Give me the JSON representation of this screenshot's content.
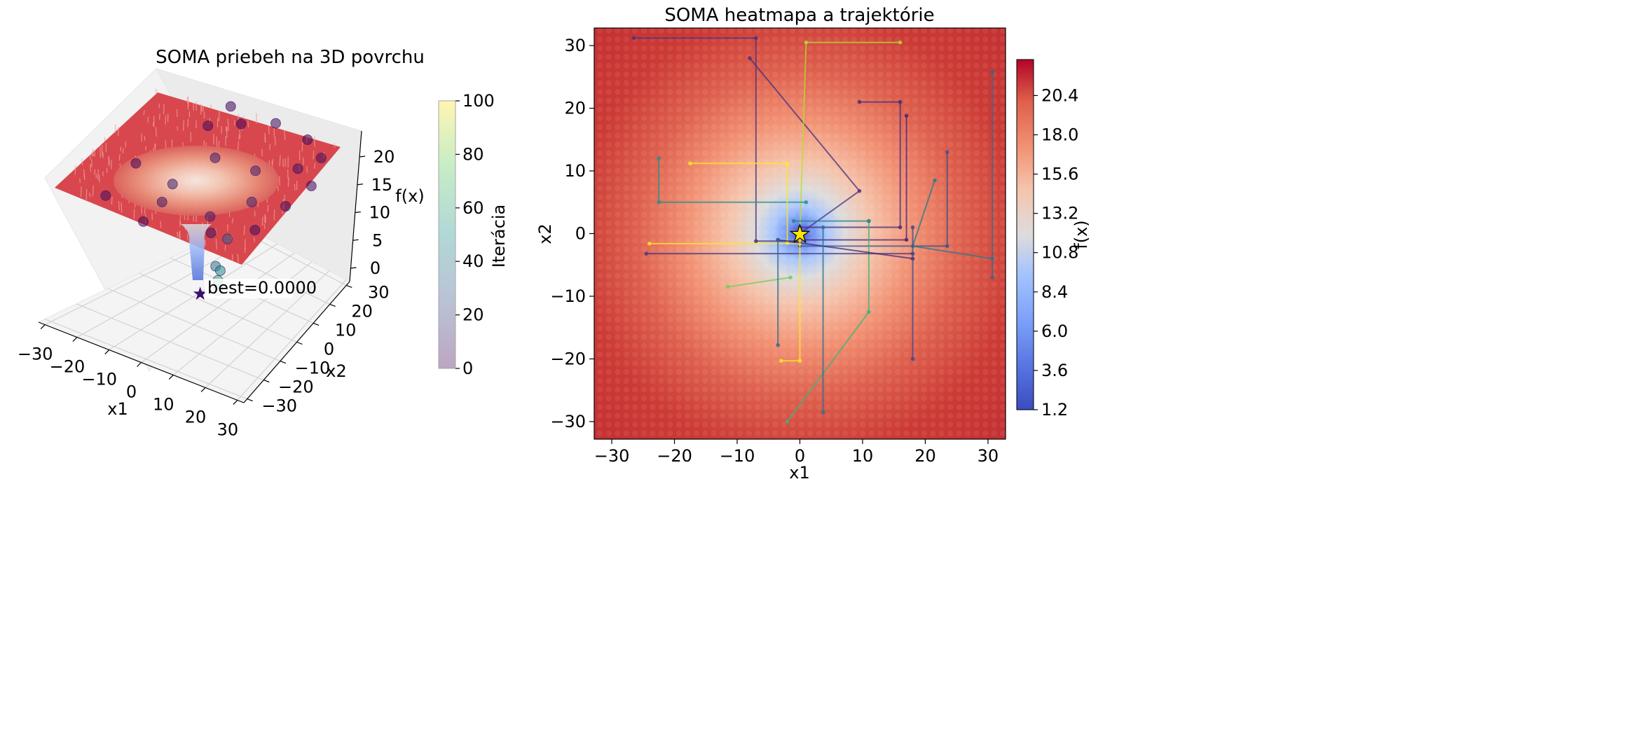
{
  "chart_data": [
    {
      "type": "surface3d",
      "title": "SOMA priebeh na 3D povrchu",
      "xlabel": "x1",
      "ylabel": "x2",
      "zlabel": "f(x)",
      "x_ticks": [
        "−30",
        "−20",
        "−10",
        "0",
        "10",
        "20",
        "30"
      ],
      "y_ticks": [
        "−30",
        "−20",
        "−10",
        "0",
        "10",
        "20",
        "30"
      ],
      "z_ticks": [
        "0",
        "5",
        "10",
        "15",
        "20"
      ],
      "xlim": [
        -32,
        32
      ],
      "ylim": [
        -32,
        32
      ],
      "zlim": [
        0,
        22
      ],
      "surface_colormap": "coolwarm",
      "annotation": "best=0.0000",
      "best_point": {
        "x": 0,
        "y": 0,
        "z": 0
      },
      "colorbar": {
        "label": "Iterácia",
        "ticks": [
          "0",
          "20",
          "40",
          "60",
          "80",
          "100"
        ],
        "range": [
          0,
          100
        ],
        "colormap": "viridis"
      },
      "population_points": [
        {
          "x": -30,
          "y": 28,
          "z": 21,
          "iter": 0
        },
        {
          "x": -26,
          "y": 18,
          "z": 21,
          "iter": 2
        },
        {
          "x": -18,
          "y": 24,
          "z": 21,
          "iter": 1
        },
        {
          "x": -8,
          "y": 30,
          "z": 21,
          "iter": 3
        },
        {
          "x": 10,
          "y": 30,
          "z": 21,
          "iter": 2
        },
        {
          "x": 22,
          "y": 26,
          "z": 21,
          "iter": 4
        },
        {
          "x": 28,
          "y": 14,
          "z": 21,
          "iter": 1
        },
        {
          "x": 26,
          "y": 2,
          "z": 21,
          "iter": 5
        },
        {
          "x": 24,
          "y": -12,
          "z": 21,
          "iter": 3
        },
        {
          "x": 14,
          "y": -20,
          "z": 21,
          "iter": 6
        },
        {
          "x": -4,
          "y": -26,
          "z": 21,
          "iter": 2
        },
        {
          "x": -20,
          "y": -22,
          "z": 21,
          "iter": 4
        },
        {
          "x": -26,
          "y": -6,
          "z": 21,
          "iter": 1
        },
        {
          "x": -12,
          "y": 10,
          "z": 20,
          "iter": 8
        },
        {
          "x": 4,
          "y": 12,
          "z": 20,
          "iter": 10
        },
        {
          "x": 12,
          "y": 2,
          "z": 19,
          "iter": 12
        },
        {
          "x": 6,
          "y": -10,
          "z": 19,
          "iter": 9
        },
        {
          "x": -8,
          "y": -14,
          "z": 20,
          "iter": 7
        },
        {
          "x": -14,
          "y": -4,
          "z": 19,
          "iter": 11
        },
        {
          "x": 18,
          "y": 18,
          "z": 21,
          "iter": 5
        },
        {
          "x": 0,
          "y": 4,
          "z": 9,
          "iter": 30
        },
        {
          "x": 1,
          "y": -2,
          "z": 6,
          "iter": 40
        },
        {
          "x": 0,
          "y": 1,
          "z": 4,
          "iter": 50
        },
        {
          "x": 0,
          "y": 0,
          "z": 2.5,
          "iter": 60
        },
        {
          "x": 0,
          "y": 0,
          "z": 1.5,
          "iter": 70
        },
        {
          "x": 0,
          "y": 0,
          "z": 0.6,
          "iter": 85
        }
      ]
    },
    {
      "type": "heatmap",
      "title": "SOMA heatmapa a trajektórie",
      "xlabel": "x1",
      "ylabel": "x2",
      "x_ticks": [
        "−30",
        "−20",
        "−10",
        "0",
        "10",
        "20",
        "30"
      ],
      "y_ticks": [
        "−30",
        "−20",
        "−10",
        "0",
        "10",
        "20",
        "30"
      ],
      "xlim": [
        -32.8,
        32.8
      ],
      "ylim": [
        -32.8,
        32.8
      ],
      "colormap": "coolwarm",
      "colorbar": {
        "label": "f(x)",
        "ticks": [
          "1.2",
          "3.6",
          "6.0",
          "8.4",
          "10.8",
          "13.2",
          "15.6",
          "18.0",
          "20.4"
        ],
        "range": [
          1.2,
          22.6
        ]
      },
      "best_point": {
        "x": 0,
        "y": 0
      },
      "trajectories": [
        {
          "color": "#46327e",
          "points": [
            [
              -26.5,
              31.2
            ],
            [
              -7,
              31.2
            ],
            [
              -7,
              -1.2
            ],
            [
              0,
              -1.2
            ]
          ]
        },
        {
          "color": "#46327e",
          "points": [
            [
              -8,
              28
            ],
            [
              9.5,
              6.8
            ],
            [
              0,
              0
            ]
          ]
        },
        {
          "color": "#b5de2b",
          "points": [
            [
              16,
              30.5
            ],
            [
              1,
              30.5
            ],
            [
              0,
              0
            ]
          ]
        },
        {
          "color": "#472c7a",
          "points": [
            [
              9.5,
              21
            ],
            [
              16,
              21
            ],
            [
              16,
              1
            ],
            [
              0,
              1
            ]
          ]
        },
        {
          "color": "#482173",
          "points": [
            [
              17,
              18.8
            ],
            [
              17,
              -1
            ],
            [
              0,
              -1
            ]
          ]
        },
        {
          "color": "#3b528b",
          "points": [
            [
              23.5,
              13
            ],
            [
              23.5,
              -2
            ],
            [
              0,
              -2
            ]
          ]
        },
        {
          "color": "#21918c",
          "points": [
            [
              -22.5,
              12
            ],
            [
              -22.5,
              5
            ],
            [
              1,
              5
            ]
          ]
        },
        {
          "color": "#fde725",
          "points": [
            [
              -17.5,
              11.2
            ],
            [
              -2,
              11.2
            ],
            [
              -2,
              -1.5
            ]
          ]
        },
        {
          "color": "#35b779",
          "points": [
            [
              11,
              2
            ],
            [
              11,
              -12.5
            ],
            [
              -2,
              -30
            ]
          ]
        },
        {
          "color": "#31688e",
          "points": [
            [
              30.7,
              25.8
            ],
            [
              30.7,
              -7
            ]
          ]
        },
        {
          "color": "#2a788e",
          "points": [
            [
              30.7,
              -4
            ],
            [
              18,
              -2
            ],
            [
              21.5,
              8.5
            ]
          ]
        },
        {
          "color": "#443983",
          "points": [
            [
              -24.5,
              -3.2
            ],
            [
              18,
              -3.2
            ]
          ]
        },
        {
          "color": "#fde725",
          "points": [
            [
              -24,
              -1.6
            ],
            [
              0,
              -1.6
            ]
          ]
        },
        {
          "color": "#482878",
          "points": [
            [
              -3.5,
              -1
            ],
            [
              18,
              -4
            ]
          ]
        },
        {
          "color": "#6ece58",
          "points": [
            [
              -1.5,
              -7
            ],
            [
              -11.5,
              -8.5
            ]
          ]
        },
        {
          "color": "#fde725",
          "points": [
            [
              0,
              -1
            ],
            [
              0,
              -20.3
            ],
            [
              -3,
              -20.3
            ]
          ]
        },
        {
          "color": "#2c728e",
          "points": [
            [
              3.7,
              1
            ],
            [
              3.7,
              -28.5
            ]
          ]
        },
        {
          "color": "#31688e",
          "points": [
            [
              -3.5,
              -1
            ],
            [
              -3.5,
              -17.8
            ]
          ]
        },
        {
          "color": "#3e4a89",
          "points": [
            [
              18,
              1
            ],
            [
              18,
              -20
            ]
          ]
        },
        {
          "color": "#26828e",
          "points": [
            [
              -1,
              2
            ],
            [
              11,
              2
            ]
          ]
        }
      ]
    }
  ]
}
